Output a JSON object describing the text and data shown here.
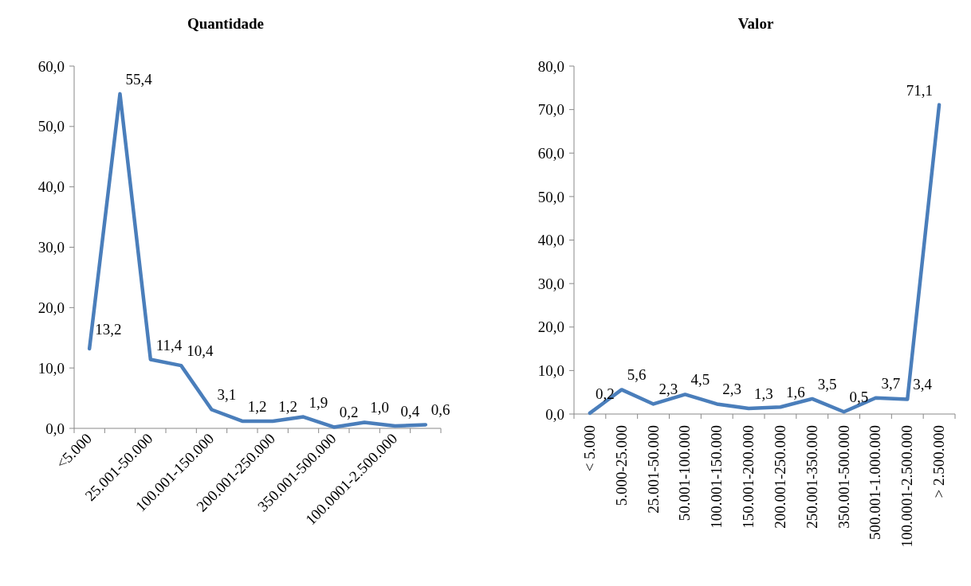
{
  "chart_data": [
    {
      "type": "line",
      "title": "Quantidade",
      "categories": [
        "<5.000",
        null,
        "25.001-50.000",
        null,
        "100.001-150.000",
        null,
        "200.001-250.000",
        null,
        "350.001-500.000",
        null,
        "100.0001-2.500.000",
        null
      ],
      "series": [
        {
          "color": "#4a7ebb",
          "values": [
            13.2,
            55.4,
            11.4,
            10.4,
            3.1,
            1.2,
            1.2,
            1.9,
            0.2,
            1.0,
            0.4,
            0.6
          ],
          "value_labels": [
            "13,2",
            "55,4",
            "11,4",
            "10,4",
            "3,1",
            "1,2",
            "1,2",
            "1,9",
            "0,2",
            "1,0",
            "0,4",
            "0,6"
          ]
        }
      ],
      "ylim": [
        0,
        60
      ],
      "yticks": [
        {
          "value": 0,
          "label": "0,0"
        },
        {
          "value": 10,
          "label": "10,0"
        },
        {
          "value": 20,
          "label": "20,0"
        },
        {
          "value": 30,
          "label": "30,0"
        },
        {
          "value": 40,
          "label": "40,0"
        },
        {
          "value": 50,
          "label": "50,0"
        },
        {
          "value": 60,
          "label": "60,0"
        }
      ],
      "grid": false
    },
    {
      "type": "line",
      "title": "Valor",
      "categories": [
        "< 5.000",
        "5.000-25.000",
        "25.001-50.000",
        "50.001-100.000",
        "100.001-150.000",
        "150.001-200.000",
        "200.001-250.000",
        "250.001-350.000",
        "350.001-500.000",
        "500.001-1.000.000",
        "100.0001-2.500.000",
        "> 2.500.000"
      ],
      "series": [
        {
          "color": "#4a7ebb",
          "values": [
            0.2,
            5.6,
            2.3,
            4.5,
            2.3,
            1.3,
            1.6,
            3.5,
            0.5,
            3.7,
            3.4,
            71.1
          ],
          "value_labels": [
            "0,2",
            "5,6",
            "2,3",
            "4,5",
            "2,3",
            "1,3",
            "1,6",
            "3,5",
            "0,5",
            "3,7",
            "3,4",
            "71,1"
          ]
        }
      ],
      "ylim": [
        0,
        80
      ],
      "yticks": [
        {
          "value": 0,
          "label": "0,0"
        },
        {
          "value": 10,
          "label": "10,0"
        },
        {
          "value": 20,
          "label": "20,0"
        },
        {
          "value": 30,
          "label": "30,0"
        },
        {
          "value": 40,
          "label": "40,0"
        },
        {
          "value": 50,
          "label": "50,0"
        },
        {
          "value": 60,
          "label": "60,0"
        },
        {
          "value": 70,
          "label": "70,0"
        },
        {
          "value": 80,
          "label": "80,0"
        }
      ],
      "grid": false
    }
  ]
}
